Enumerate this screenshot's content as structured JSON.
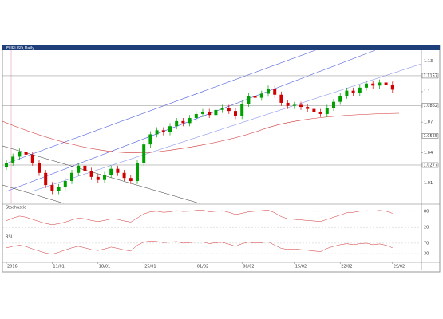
{
  "chart_data": {
    "type": "candlestick",
    "title": "EURUSD,Daily",
    "up_color": "#00a000",
    "down_color": "#d00000",
    "categories": [
      "2016",
      null,
      null,
      null,
      null,
      null,
      null,
      "11/01",
      null,
      null,
      null,
      null,
      null,
      null,
      "18/01",
      null,
      null,
      null,
      null,
      null,
      null,
      "25/01",
      null,
      null,
      null,
      null,
      null,
      null,
      null,
      "01/02",
      null,
      null,
      null,
      null,
      null,
      null,
      "08/02",
      null,
      null,
      null,
      null,
      null,
      null,
      null,
      "15/02",
      null,
      null,
      null,
      null,
      null,
      null,
      "22/02",
      null,
      null,
      null,
      null,
      null,
      null,
      null,
      "29/02"
    ],
    "open": [
      1.026,
      1.03,
      1.036,
      1.041,
      1.038,
      1.03,
      1.02,
      1.008,
      1.002,
      1.006,
      1.012,
      1.02,
      1.027,
      1.022,
      1.016,
      1.013,
      1.018,
      1.024,
      1.02,
      1.015,
      1.012,
      1.03,
      1.048,
      1.058,
      1.062,
      1.06,
      1.066,
      1.071,
      1.069,
      1.074,
      1.078,
      1.08,
      1.077,
      1.082,
      1.084,
      1.081,
      1.076,
      1.088,
      1.096,
      1.094,
      1.098,
      1.103,
      1.097,
      1.089,
      1.086,
      1.087,
      1.085,
      1.083,
      1.08,
      1.078,
      1.084,
      1.09,
      1.096,
      1.101,
      1.099,
      1.104,
      1.108,
      1.106,
      1.109,
      1.107
    ],
    "high": [
      1.033,
      1.039,
      1.044,
      1.044,
      1.041,
      1.033,
      1.023,
      1.011,
      1.009,
      1.015,
      1.023,
      1.03,
      1.03,
      1.025,
      1.019,
      1.021,
      1.027,
      1.027,
      1.023,
      1.018,
      1.033,
      1.051,
      1.061,
      1.065,
      1.065,
      1.069,
      1.074,
      1.074,
      1.077,
      1.081,
      1.083,
      1.083,
      1.085,
      1.087,
      1.087,
      1.084,
      1.091,
      1.099,
      1.099,
      1.101,
      1.106,
      1.106,
      1.1,
      1.092,
      1.09,
      1.09,
      1.088,
      1.086,
      1.083,
      1.087,
      1.093,
      1.099,
      1.104,
      1.104,
      1.107,
      1.111,
      1.111,
      1.112,
      1.112,
      1.11
    ],
    "low": [
      1.023,
      1.027,
      1.033,
      1.035,
      1.027,
      1.017,
      1.005,
      0.999,
      0.999,
      1.003,
      1.009,
      1.017,
      1.019,
      1.013,
      1.01,
      1.01,
      1.015,
      1.017,
      1.012,
      1.009,
      1.009,
      1.027,
      1.045,
      1.055,
      1.057,
      1.057,
      1.063,
      1.066,
      1.066,
      1.071,
      1.075,
      1.074,
      1.074,
      1.079,
      1.078,
      1.073,
      1.073,
      1.085,
      1.091,
      1.091,
      1.095,
      1.094,
      1.086,
      1.083,
      1.083,
      1.082,
      1.08,
      1.077,
      1.075,
      1.075,
      1.081,
      1.087,
      1.093,
      1.096,
      1.096,
      1.101,
      1.103,
      1.103,
      1.104,
      1.099
    ],
    "close": [
      1.03,
      1.036,
      1.041,
      1.038,
      1.03,
      1.02,
      1.008,
      1.002,
      1.006,
      1.012,
      1.02,
      1.027,
      1.022,
      1.016,
      1.013,
      1.018,
      1.024,
      1.02,
      1.015,
      1.012,
      1.03,
      1.048,
      1.058,
      1.062,
      1.06,
      1.066,
      1.071,
      1.069,
      1.074,
      1.078,
      1.08,
      1.077,
      1.082,
      1.084,
      1.081,
      1.076,
      1.088,
      1.096,
      1.094,
      1.098,
      1.103,
      1.097,
      1.089,
      1.086,
      1.087,
      1.085,
      1.083,
      1.08,
      1.078,
      1.084,
      1.09,
      1.096,
      1.101,
      1.099,
      1.104,
      1.108,
      1.106,
      1.109,
      1.107,
      1.102
    ],
    "ylim": [
      0.99,
      1.14
    ],
    "yticks": [
      1.01,
      1.04,
      1.07,
      1.1,
      1.13
    ],
    "levels": [
      1.1157,
      1.0862,
      1.0565,
      1.0277
    ],
    "indicators": [
      {
        "name": "Stochastic",
        "color": "#d03030",
        "ylim": [
          0,
          100
        ],
        "yticks": [
          20,
          80
        ],
        "values": [
          45,
          55,
          62,
          58,
          50,
          42,
          35,
          30,
          34,
          40,
          48,
          55,
          52,
          46,
          42,
          46,
          52,
          50,
          44,
          40,
          55,
          70,
          78,
          80,
          76,
          78,
          82,
          79,
          80,
          83,
          84,
          78,
          80,
          82,
          76,
          68,
          72,
          78,
          80,
          82,
          84,
          74,
          60,
          52,
          50,
          48,
          46,
          44,
          42,
          50,
          58,
          66,
          74,
          76,
          80,
          82,
          80,
          83,
          80,
          72
        ]
      },
      {
        "name": "RSI",
        "color": "#d03030",
        "ylim": [
          0,
          100
        ],
        "yticks": [
          30,
          70
        ],
        "values": [
          52,
          58,
          62,
          57,
          48,
          40,
          32,
          28,
          35,
          44,
          52,
          58,
          52,
          45,
          42,
          48,
          55,
          50,
          44,
          40,
          62,
          74,
          78,
          76,
          72,
          74,
          76,
          70,
          72,
          74,
          75,
          68,
          72,
          73,
          66,
          58,
          68,
          74,
          70,
          72,
          75,
          62,
          50,
          46,
          48,
          45,
          43,
          40,
          38,
          50,
          58,
          64,
          68,
          64,
          68,
          70,
          64,
          67,
          62,
          52
        ]
      }
    ]
  }
}
